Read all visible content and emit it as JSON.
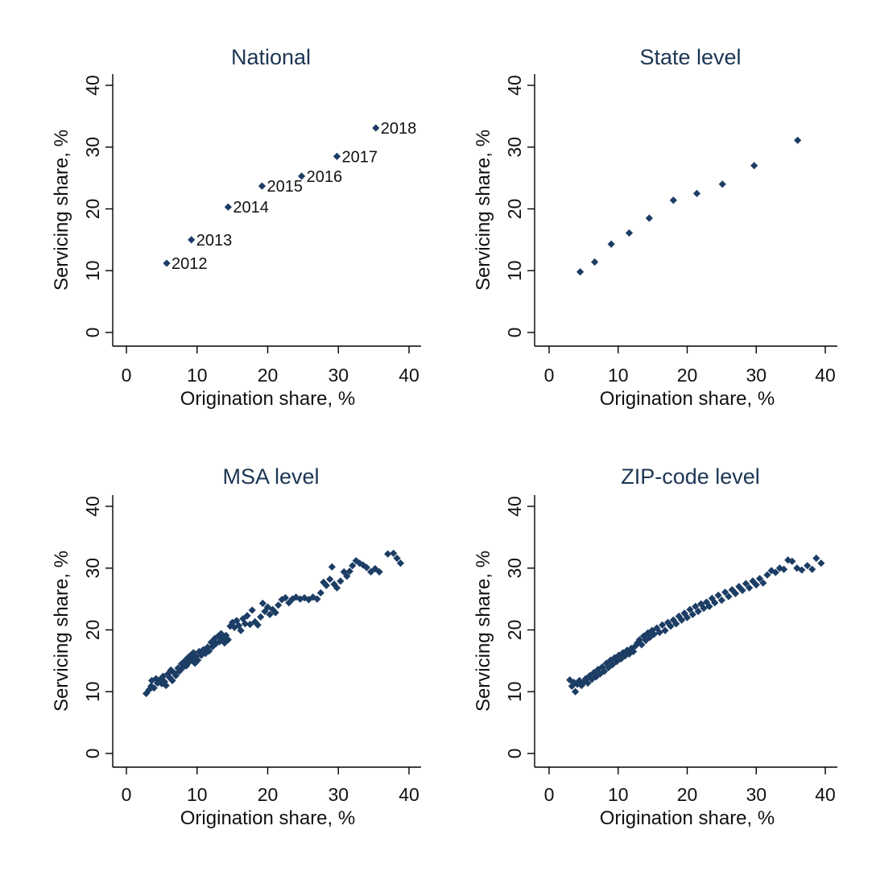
{
  "figure": {
    "marker_color": "#1c3d64",
    "title_color": "#1c3654"
  },
  "chart_data": [
    {
      "type": "scatter",
      "title": "National",
      "xlabel": "Origination share, %",
      "ylabel": "Servicing share, %",
      "xlim": [
        0,
        40
      ],
      "ylim": [
        0,
        40
      ],
      "xticks": [
        "0",
        "10",
        "20",
        "30",
        "40"
      ],
      "yticks": [
        "0",
        "10",
        "20",
        "30",
        "40"
      ],
      "grid": false,
      "points": [
        {
          "x": 5.7,
          "y": 11.2,
          "label": "2012"
        },
        {
          "x": 9.2,
          "y": 15.0,
          "label": "2013"
        },
        {
          "x": 14.4,
          "y": 20.3,
          "label": "2014"
        },
        {
          "x": 19.2,
          "y": 23.7,
          "label": "2015"
        },
        {
          "x": 24.8,
          "y": 25.3,
          "label": "2016"
        },
        {
          "x": 29.8,
          "y": 28.5,
          "label": "2017"
        },
        {
          "x": 35.3,
          "y": 33.1,
          "label": "2018"
        }
      ]
    },
    {
      "type": "scatter",
      "title": "State level",
      "xlabel": "Origination share, %",
      "ylabel": "Servicing share, %",
      "xlim": [
        0,
        40
      ],
      "ylim": [
        0,
        40
      ],
      "xticks": [
        "0",
        "10",
        "20",
        "30",
        "40"
      ],
      "yticks": [
        "0",
        "10",
        "20",
        "30",
        "40"
      ],
      "grid": false,
      "points": [
        {
          "x": 4.5,
          "y": 9.8
        },
        {
          "x": 6.6,
          "y": 11.4
        },
        {
          "x": 9.0,
          "y": 14.3
        },
        {
          "x": 11.6,
          "y": 16.1
        },
        {
          "x": 14.5,
          "y": 18.5
        },
        {
          "x": 18.0,
          "y": 21.4
        },
        {
          "x": 21.4,
          "y": 22.5
        },
        {
          "x": 25.1,
          "y": 24.0
        },
        {
          "x": 29.7,
          "y": 27.0
        },
        {
          "x": 36.0,
          "y": 31.1
        }
      ]
    },
    {
      "type": "scatter",
      "title": "MSA level",
      "xlabel": "Origination share, %",
      "ylabel": "Servicing share, %",
      "xlim": [
        0,
        40
      ],
      "ylim": [
        0,
        40
      ],
      "xticks": [
        "0",
        "10",
        "20",
        "30",
        "40"
      ],
      "yticks": [
        "0",
        "10",
        "20",
        "30",
        "40"
      ],
      "grid": false,
      "points": [
        {
          "x": 2.8,
          "y": 9.7
        },
        {
          "x": 3.2,
          "y": 10.3
        },
        {
          "x": 3.5,
          "y": 10.9
        },
        {
          "x": 3.6,
          "y": 11.8
        },
        {
          "x": 3.9,
          "y": 10.6
        },
        {
          "x": 4.2,
          "y": 12.1
        },
        {
          "x": 4.4,
          "y": 11.4
        },
        {
          "x": 4.8,
          "y": 12.0
        },
        {
          "x": 5.0,
          "y": 11.3
        },
        {
          "x": 5.2,
          "y": 12.5
        },
        {
          "x": 5.4,
          "y": 11.6
        },
        {
          "x": 5.6,
          "y": 11.0
        },
        {
          "x": 5.9,
          "y": 12.9
        },
        {
          "x": 6.1,
          "y": 12.3
        },
        {
          "x": 6.3,
          "y": 13.5
        },
        {
          "x": 6.5,
          "y": 11.8
        },
        {
          "x": 6.8,
          "y": 13.0
        },
        {
          "x": 7.0,
          "y": 12.6
        },
        {
          "x": 7.3,
          "y": 13.8
        },
        {
          "x": 7.5,
          "y": 13.3
        },
        {
          "x": 7.8,
          "y": 14.5
        },
        {
          "x": 8.0,
          "y": 13.9
        },
        {
          "x": 8.2,
          "y": 14.9
        },
        {
          "x": 8.5,
          "y": 14.2
        },
        {
          "x": 8.7,
          "y": 15.5
        },
        {
          "x": 8.9,
          "y": 14.8
        },
        {
          "x": 9.1,
          "y": 15.9
        },
        {
          "x": 9.3,
          "y": 15.2
        },
        {
          "x": 9.5,
          "y": 16.3
        },
        {
          "x": 9.7,
          "y": 14.6
        },
        {
          "x": 9.9,
          "y": 15.7
        },
        {
          "x": 10.1,
          "y": 15.1
        },
        {
          "x": 10.3,
          "y": 16.5
        },
        {
          "x": 10.6,
          "y": 15.9
        },
        {
          "x": 10.9,
          "y": 16.8
        },
        {
          "x": 11.2,
          "y": 16.2
        },
        {
          "x": 11.5,
          "y": 17.2
        },
        {
          "x": 11.7,
          "y": 16.6
        },
        {
          "x": 12.0,
          "y": 18.0
        },
        {
          "x": 12.2,
          "y": 17.3
        },
        {
          "x": 12.5,
          "y": 18.6
        },
        {
          "x": 12.7,
          "y": 17.8
        },
        {
          "x": 13.0,
          "y": 19.0
        },
        {
          "x": 13.2,
          "y": 18.1
        },
        {
          "x": 13.4,
          "y": 19.4
        },
        {
          "x": 13.6,
          "y": 18.6
        },
        {
          "x": 13.9,
          "y": 17.9
        },
        {
          "x": 14.1,
          "y": 19.1
        },
        {
          "x": 14.4,
          "y": 18.4
        },
        {
          "x": 14.7,
          "y": 20.6
        },
        {
          "x": 15.0,
          "y": 21.2
        },
        {
          "x": 15.3,
          "y": 20.4
        },
        {
          "x": 15.6,
          "y": 21.5
        },
        {
          "x": 15.9,
          "y": 20.7
        },
        {
          "x": 16.2,
          "y": 19.9
        },
        {
          "x": 16.5,
          "y": 21.8
        },
        {
          "x": 16.8,
          "y": 21.0
        },
        {
          "x": 17.1,
          "y": 22.3
        },
        {
          "x": 17.5,
          "y": 20.9
        },
        {
          "x": 17.8,
          "y": 23.2
        },
        {
          "x": 18.2,
          "y": 21.3
        },
        {
          "x": 18.6,
          "y": 20.8
        },
        {
          "x": 19.0,
          "y": 22.1
        },
        {
          "x": 19.3,
          "y": 24.3
        },
        {
          "x": 19.6,
          "y": 23.0
        },
        {
          "x": 20.0,
          "y": 23.7
        },
        {
          "x": 20.3,
          "y": 22.5
        },
        {
          "x": 20.7,
          "y": 23.3
        },
        {
          "x": 21.1,
          "y": 22.8
        },
        {
          "x": 21.5,
          "y": 24.0
        },
        {
          "x": 22.0,
          "y": 24.9
        },
        {
          "x": 22.5,
          "y": 25.2
        },
        {
          "x": 23.0,
          "y": 24.4
        },
        {
          "x": 23.5,
          "y": 25.0
        },
        {
          "x": 24.0,
          "y": 25.3
        },
        {
          "x": 24.6,
          "y": 25.0
        },
        {
          "x": 25.2,
          "y": 25.2
        },
        {
          "x": 25.8,
          "y": 24.9
        },
        {
          "x": 26.4,
          "y": 25.3
        },
        {
          "x": 27.0,
          "y": 25.0
        },
        {
          "x": 27.5,
          "y": 26.0
        },
        {
          "x": 27.9,
          "y": 27.7
        },
        {
          "x": 28.3,
          "y": 27.2
        },
        {
          "x": 28.8,
          "y": 28.2
        },
        {
          "x": 29.1,
          "y": 30.2
        },
        {
          "x": 29.4,
          "y": 27.4
        },
        {
          "x": 29.8,
          "y": 26.8
        },
        {
          "x": 30.3,
          "y": 27.9
        },
        {
          "x": 30.8,
          "y": 29.4
        },
        {
          "x": 31.2,
          "y": 28.7
        },
        {
          "x": 31.6,
          "y": 29.5
        },
        {
          "x": 32.0,
          "y": 30.4
        },
        {
          "x": 32.5,
          "y": 31.2
        },
        {
          "x": 33.0,
          "y": 30.8
        },
        {
          "x": 33.5,
          "y": 30.5
        },
        {
          "x": 34.0,
          "y": 30.1
        },
        {
          "x": 34.6,
          "y": 29.4
        },
        {
          "x": 35.2,
          "y": 29.9
        },
        {
          "x": 35.8,
          "y": 29.4
        },
        {
          "x": 37.0,
          "y": 32.3
        },
        {
          "x": 37.8,
          "y": 32.4
        },
        {
          "x": 38.3,
          "y": 31.6
        },
        {
          "x": 38.8,
          "y": 30.8
        }
      ]
    },
    {
      "type": "scatter",
      "title": "ZIP-code level",
      "xlabel": "Origination share, %",
      "ylabel": "Servicing share, %",
      "xlim": [
        0,
        40
      ],
      "ylim": [
        0,
        40
      ],
      "xticks": [
        "0",
        "10",
        "20",
        "30",
        "40"
      ],
      "yticks": [
        "0",
        "10",
        "20",
        "30",
        "40"
      ],
      "grid": false,
      "points": [
        {
          "x": 3.0,
          "y": 11.9
        },
        {
          "x": 3.3,
          "y": 10.9
        },
        {
          "x": 3.6,
          "y": 11.5
        },
        {
          "x": 3.8,
          "y": 10.0
        },
        {
          "x": 4.1,
          "y": 11.2
        },
        {
          "x": 4.4,
          "y": 11.8
        },
        {
          "x": 4.7,
          "y": 11.0
        },
        {
          "x": 5.0,
          "y": 11.5
        },
        {
          "x": 5.3,
          "y": 12.1
        },
        {
          "x": 5.6,
          "y": 11.4
        },
        {
          "x": 5.9,
          "y": 12.6
        },
        {
          "x": 6.2,
          "y": 12.0
        },
        {
          "x": 6.5,
          "y": 13.1
        },
        {
          "x": 6.8,
          "y": 12.4
        },
        {
          "x": 7.1,
          "y": 13.6
        },
        {
          "x": 7.4,
          "y": 12.9
        },
        {
          "x": 7.7,
          "y": 14.0
        },
        {
          "x": 8.0,
          "y": 13.3
        },
        {
          "x": 8.3,
          "y": 14.6
        },
        {
          "x": 8.6,
          "y": 13.9
        },
        {
          "x": 8.9,
          "y": 15.1
        },
        {
          "x": 9.2,
          "y": 14.4
        },
        {
          "x": 9.5,
          "y": 15.5
        },
        {
          "x": 9.8,
          "y": 14.9
        },
        {
          "x": 10.1,
          "y": 15.9
        },
        {
          "x": 10.4,
          "y": 15.3
        },
        {
          "x": 10.7,
          "y": 16.3
        },
        {
          "x": 11.0,
          "y": 15.8
        },
        {
          "x": 11.3,
          "y": 16.7
        },
        {
          "x": 11.6,
          "y": 16.1
        },
        {
          "x": 11.9,
          "y": 17.0
        },
        {
          "x": 12.2,
          "y": 16.5
        },
        {
          "x": 12.5,
          "y": 17.4
        },
        {
          "x": 12.8,
          "y": 17.9
        },
        {
          "x": 13.1,
          "y": 18.4
        },
        {
          "x": 13.4,
          "y": 17.6
        },
        {
          "x": 13.7,
          "y": 19.0
        },
        {
          "x": 14.0,
          "y": 18.3
        },
        {
          "x": 14.3,
          "y": 19.5
        },
        {
          "x": 14.6,
          "y": 18.8
        },
        {
          "x": 14.9,
          "y": 19.9
        },
        {
          "x": 15.2,
          "y": 19.3
        },
        {
          "x": 15.6,
          "y": 20.3
        },
        {
          "x": 16.0,
          "y": 19.6
        },
        {
          "x": 16.4,
          "y": 20.8
        },
        {
          "x": 16.8,
          "y": 19.9
        },
        {
          "x": 17.2,
          "y": 21.2
        },
        {
          "x": 17.6,
          "y": 20.6
        },
        {
          "x": 18.0,
          "y": 21.6
        },
        {
          "x": 18.4,
          "y": 21.0
        },
        {
          "x": 18.8,
          "y": 22.2
        },
        {
          "x": 19.2,
          "y": 21.6
        },
        {
          "x": 19.6,
          "y": 22.7
        },
        {
          "x": 20.0,
          "y": 22.0
        },
        {
          "x": 20.4,
          "y": 23.3
        },
        {
          "x": 20.8,
          "y": 22.5
        },
        {
          "x": 21.2,
          "y": 23.8
        },
        {
          "x": 21.6,
          "y": 23.0
        },
        {
          "x": 22.0,
          "y": 24.2
        },
        {
          "x": 22.4,
          "y": 23.5
        },
        {
          "x": 22.8,
          "y": 24.5
        },
        {
          "x": 23.2,
          "y": 23.8
        },
        {
          "x": 23.6,
          "y": 25.1
        },
        {
          "x": 24.0,
          "y": 24.4
        },
        {
          "x": 24.5,
          "y": 25.6
        },
        {
          "x": 25.0,
          "y": 24.8
        },
        {
          "x": 25.5,
          "y": 26.1
        },
        {
          "x": 26.0,
          "y": 25.4
        },
        {
          "x": 26.5,
          "y": 26.5
        },
        {
          "x": 27.0,
          "y": 25.9
        },
        {
          "x": 27.5,
          "y": 27.0
        },
        {
          "x": 28.0,
          "y": 26.4
        },
        {
          "x": 28.5,
          "y": 27.5
        },
        {
          "x": 29.0,
          "y": 26.8
        },
        {
          "x": 29.5,
          "y": 27.9
        },
        {
          "x": 30.0,
          "y": 27.3
        },
        {
          "x": 30.5,
          "y": 28.3
        },
        {
          "x": 31.0,
          "y": 27.6
        },
        {
          "x": 31.6,
          "y": 28.9
        },
        {
          "x": 32.2,
          "y": 29.6
        },
        {
          "x": 32.8,
          "y": 29.3
        },
        {
          "x": 33.4,
          "y": 30.0
        },
        {
          "x": 34.0,
          "y": 29.8
        },
        {
          "x": 34.6,
          "y": 31.3
        },
        {
          "x": 35.2,
          "y": 31.1
        },
        {
          "x": 35.9,
          "y": 30.0
        },
        {
          "x": 36.6,
          "y": 29.7
        },
        {
          "x": 37.4,
          "y": 30.4
        },
        {
          "x": 38.1,
          "y": 29.8
        },
        {
          "x": 38.7,
          "y": 31.6
        },
        {
          "x": 39.4,
          "y": 30.8
        }
      ]
    }
  ]
}
